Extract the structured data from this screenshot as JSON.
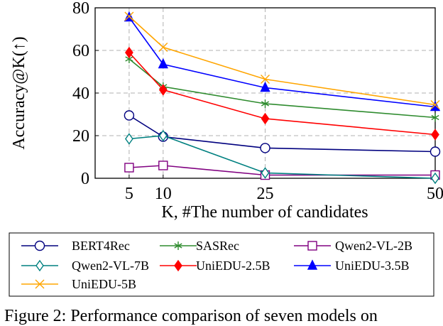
{
  "chart_data": {
    "type": "line",
    "xlabel": "K, #The number of candidates",
    "ylabel": "Accuracy@K(↑)",
    "x": [
      5,
      10,
      25,
      50
    ],
    "xticks": [
      "5",
      "10",
      "25",
      "50"
    ],
    "xlim": [
      0,
      50
    ],
    "ylim": [
      0,
      80
    ],
    "yticks": [
      "0",
      "20",
      "40",
      "60",
      "80"
    ],
    "grid": true,
    "legend_position": "below",
    "series": [
      {
        "name": "BERT4Rec",
        "color": "#00007f",
        "marker": "circle",
        "values": [
          29.5,
          19.5,
          14.2,
          12.5
        ]
      },
      {
        "name": "SASRec",
        "color": "#2e8b2e",
        "marker": "star",
        "values": [
          56,
          43,
          35,
          28.5
        ]
      },
      {
        "name": "Qwen2-VL-2B",
        "color": "#800080",
        "marker": "square",
        "values": [
          5,
          6,
          1.5,
          1.5
        ]
      },
      {
        "name": "Qwen2-VL-7B",
        "color": "#008080",
        "marker": "diamond-open",
        "values": [
          18.5,
          20,
          2.5,
          0
        ]
      },
      {
        "name": "UniEDU-2.5B",
        "color": "#ff0000",
        "marker": "diamond",
        "values": [
          59,
          41.5,
          28,
          20.5
        ]
      },
      {
        "name": "UniEDU-3.5B",
        "color": "#0000ff",
        "marker": "triangle",
        "values": [
          75.5,
          53.5,
          42.5,
          33.5
        ]
      },
      {
        "name": "UniEDU-5B",
        "color": "#ffa500",
        "marker": "cross",
        "values": [
          76,
          61.5,
          46.5,
          34.5
        ]
      }
    ]
  },
  "caption": "Figure 2: Performance comparison of seven models on"
}
